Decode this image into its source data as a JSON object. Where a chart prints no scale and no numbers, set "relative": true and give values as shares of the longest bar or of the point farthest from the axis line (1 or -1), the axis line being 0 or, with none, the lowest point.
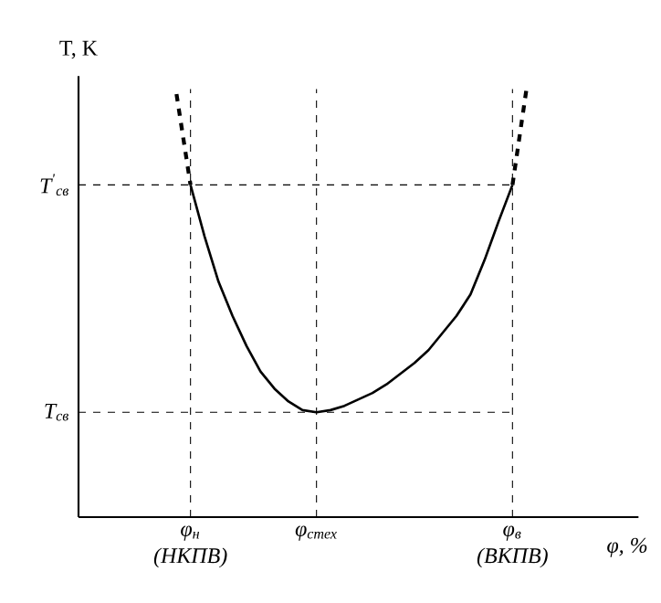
{
  "chart_data": {
    "type": "line",
    "relative": true,
    "xlabel": "φ, %",
    "ylabel": "T, K",
    "categories": [
      null,
      null,
      null,
      null,
      null,
      null,
      null,
      null,
      "φ$_{н}$ (НКПВ)",
      null,
      null,
      null,
      null,
      null,
      null,
      null,
      null,
      "φ$_{стех}$",
      null,
      null,
      null,
      null,
      null,
      null,
      null,
      null,
      null,
      null,
      null,
      null,
      null,
      "φ$_{в}$ (ВКПВ)",
      null,
      null,
      null,
      null,
      null,
      null,
      null,
      null,
      null
    ],
    "series": [
      {
        "color": "#000000",
        "line_style": "dashed",
        "values": [
          null,
          null,
          null,
          null,
          null,
          null,
          null,
          0.988,
          0.776,
          null,
          null,
          null,
          null,
          null,
          null,
          null,
          null,
          null,
          null,
          null,
          null,
          null,
          null,
          null,
          null,
          null,
          null,
          null,
          null,
          null,
          null,
          null,
          null,
          null,
          null,
          null,
          null,
          null,
          null,
          null,
          null
        ]
      },
      {
        "color": "#000000",
        "line_style": "solid",
        "values": [
          null,
          null,
          null,
          null,
          null,
          null,
          null,
          null,
          0.776,
          0.656,
          0.55,
          0.47,
          0.4,
          0.34,
          0.3,
          0.27,
          0.25,
          0.245,
          0.25,
          0.26,
          0.275,
          0.29,
          0.31,
          0.335,
          0.36,
          0.39,
          0.43,
          0.47,
          0.52,
          0.6,
          0.69,
          0.776,
          null,
          null,
          null,
          null,
          null,
          null,
          null,
          null,
          null
        ]
      },
      {
        "color": "#000000",
        "line_style": "dashed",
        "values": [
          null,
          null,
          null,
          null,
          null,
          null,
          null,
          null,
          null,
          null,
          null,
          null,
          null,
          null,
          null,
          null,
          null,
          null,
          null,
          null,
          null,
          null,
          null,
          null,
          null,
          null,
          null,
          null,
          null,
          null,
          null,
          0.776,
          1.0,
          null,
          null,
          null,
          null,
          null,
          null,
          null,
          null
        ]
      }
    ],
    "ref_lines": [
      {
        "axis": "y",
        "value": 0.776,
        "label": "T$^{'}$$_{св}$",
        "line_style": "dashed"
      },
      {
        "axis": "y",
        "value": 0.245,
        "label": "T$_{св}$",
        "line_style": "dashed"
      },
      {
        "axis": "x",
        "value": "φ$_{н}$ (НКПВ)",
        "line_style": "dashed"
      },
      {
        "axis": "x",
        "value": "φ$_{стех}$",
        "line_style": "dashed"
      },
      {
        "axis": "x",
        "value": "φ$_{в}$ (ВКПВ)",
        "line_style": "dashed"
      }
    ],
    "grid": false,
    "marker": "none"
  }
}
